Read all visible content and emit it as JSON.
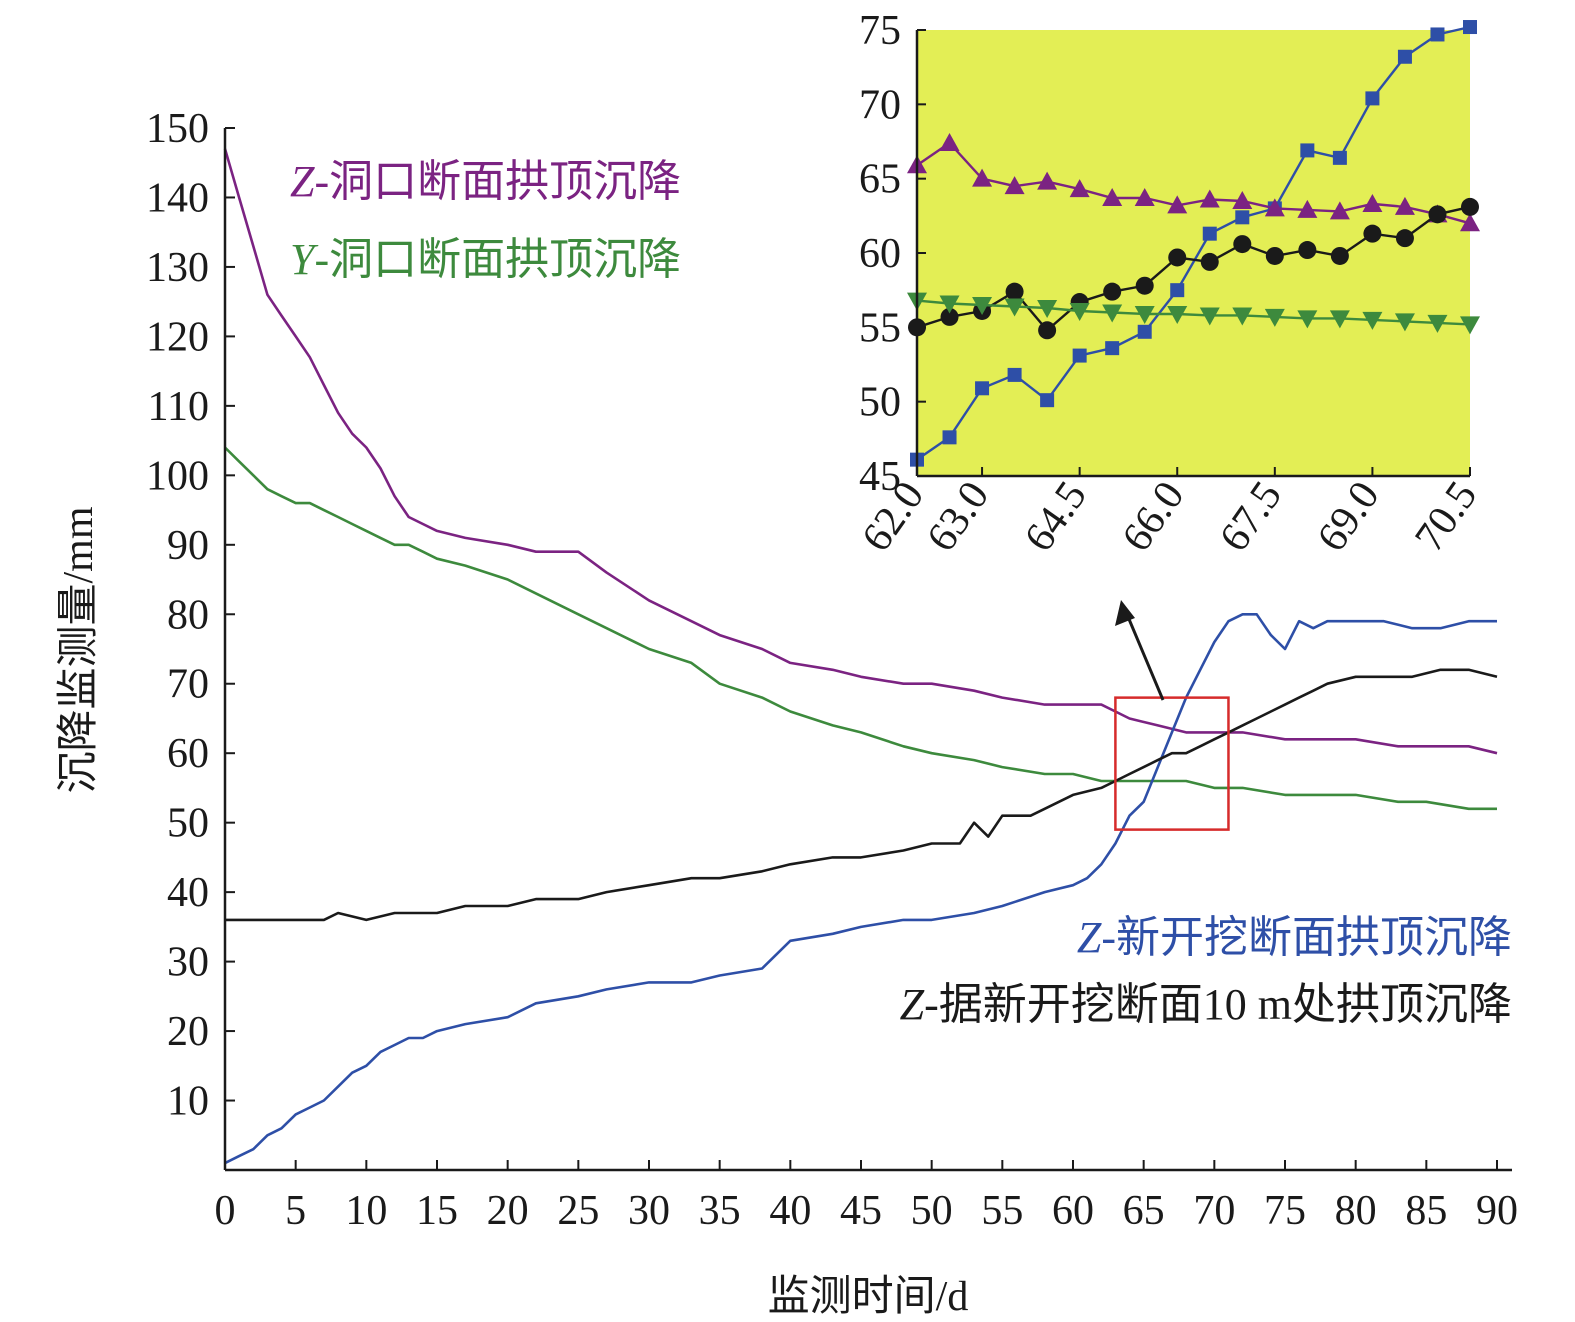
{
  "colors": {
    "z_portal": "#7b2382",
    "y_portal": "#3d8a3d",
    "z_new": "#2e4fa7",
    "z_10m": "#1a1a1a",
    "zoom_box": "#d62b2b",
    "inset_bg": "#e3ee55"
  },
  "chart_data": [
    {
      "type": "line",
      "xlabel": "监测时间/d",
      "ylabel": "沉降监测量/mm",
      "xlim": [
        0,
        90
      ],
      "ylim": [
        0,
        150
      ],
      "xticks": [
        0,
        5,
        10,
        15,
        20,
        25,
        30,
        35,
        40,
        45,
        50,
        55,
        60,
        65,
        70,
        75,
        80,
        85,
        90
      ],
      "yticks": [
        10,
        20,
        30,
        40,
        50,
        60,
        70,
        80,
        90,
        100,
        110,
        120,
        130,
        140,
        150
      ],
      "legend_placement": "top-left and bottom-right",
      "grid": false,
      "annotation": "zoom box from day 63 to day 71, 49 to 68 mm, arrow to inset",
      "series": [
        {
          "name": "Z-洞口断面拱顶沉降",
          "x": [
            0,
            1,
            2,
            3,
            4,
            5,
            6,
            7,
            8,
            9,
            10,
            11,
            12,
            13,
            14,
            15,
            17,
            20,
            22,
            25,
            27,
            30,
            33,
            35,
            38,
            40,
            43,
            45,
            48,
            50,
            53,
            55,
            58,
            60,
            62,
            63,
            64,
            66,
            68,
            70,
            72,
            75,
            78,
            80,
            83,
            85,
            88,
            90
          ],
          "y": [
            147,
            140,
            133,
            126,
            123,
            120,
            117,
            113,
            109,
            106,
            104,
            101,
            97,
            94,
            93,
            92,
            91,
            90,
            89,
            89,
            86,
            82,
            79,
            77,
            75,
            73,
            72,
            71,
            70,
            70,
            69,
            68,
            67,
            67,
            67,
            66,
            65,
            64,
            63,
            63,
            63,
            62,
            62,
            62,
            61,
            61,
            61,
            60
          ]
        },
        {
          "name": "Y-洞口断面拱顶沉降",
          "x": [
            0,
            1,
            2,
            3,
            4,
            5,
            6,
            7,
            8,
            9,
            10,
            11,
            12,
            13,
            14,
            15,
            17,
            20,
            22,
            25,
            27,
            30,
            33,
            35,
            38,
            40,
            43,
            45,
            48,
            50,
            53,
            55,
            58,
            60,
            62,
            64,
            66,
            68,
            70,
            72,
            75,
            78,
            80,
            83,
            85,
            88,
            90
          ],
          "y": [
            104,
            102,
            100,
            98,
            97,
            96,
            96,
            95,
            94,
            93,
            92,
            91,
            90,
            90,
            89,
            88,
            87,
            85,
            83,
            80,
            78,
            75,
            73,
            70,
            68,
            66,
            64,
            63,
            61,
            60,
            59,
            58,
            57,
            57,
            56,
            56,
            56,
            56,
            55,
            55,
            54,
            54,
            54,
            53,
            53,
            52,
            52
          ]
        },
        {
          "name": "Z-新开挖断面拱顶沉降",
          "x": [
            0,
            1,
            2,
            3,
            4,
            5,
            6,
            7,
            8,
            9,
            10,
            11,
            12,
            13,
            14,
            15,
            17,
            20,
            22,
            25,
            27,
            30,
            33,
            35,
            38,
            40,
            43,
            45,
            48,
            50,
            53,
            55,
            58,
            60,
            61,
            62,
            63,
            64,
            65,
            66,
            67,
            68,
            69,
            70,
            71,
            72,
            73,
            74,
            75,
            76,
            77,
            78,
            80,
            82,
            84,
            86,
            88,
            90
          ],
          "y": [
            1,
            2,
            3,
            5,
            6,
            8,
            9,
            10,
            12,
            14,
            15,
            17,
            18,
            19,
            19,
            20,
            21,
            22,
            24,
            25,
            26,
            27,
            27,
            28,
            29,
            33,
            34,
            35,
            36,
            36,
            37,
            38,
            40,
            41,
            42,
            44,
            47,
            51,
            53,
            58,
            63,
            68,
            72,
            76,
            79,
            80,
            80,
            77,
            75,
            79,
            78,
            79,
            79,
            79,
            78,
            78,
            79,
            79
          ]
        },
        {
          "name": "Z-据新开挖断面10 m处拱顶沉降",
          "x": [
            0,
            5,
            7,
            8,
            10,
            12,
            15,
            17,
            20,
            22,
            25,
            27,
            30,
            33,
            35,
            38,
            40,
            43,
            45,
            48,
            50,
            52,
            53,
            54,
            55,
            57,
            58,
            60,
            62,
            63,
            64,
            65,
            66,
            67,
            68,
            69,
            70,
            71,
            72,
            73,
            74,
            75,
            76,
            77,
            78,
            80,
            82,
            84,
            86,
            88,
            90
          ],
          "y": [
            36,
            36,
            36,
            37,
            36,
            37,
            37,
            38,
            38,
            39,
            39,
            40,
            41,
            42,
            42,
            43,
            44,
            45,
            45,
            46,
            47,
            47,
            50,
            48,
            51,
            51,
            52,
            54,
            55,
            56,
            57,
            58,
            59,
            60,
            60,
            61,
            62,
            63,
            64,
            65,
            66,
            67,
            68,
            69,
            70,
            71,
            71,
            71,
            72,
            72,
            71
          ]
        }
      ]
    },
    {
      "type": "line",
      "xlabel": "",
      "ylabel": "",
      "xlim": [
        62,
        70.5
      ],
      "ylim": [
        45,
        75
      ],
      "xticks": [
        "62.0",
        "63.0",
        "64.5",
        "66.0",
        "67.5",
        "69.0",
        "70.5"
      ],
      "yticks": [
        45,
        50,
        55,
        60,
        65,
        70,
        75
      ],
      "background": "#e3ee55",
      "series": [
        {
          "marker": "square",
          "color": "#2e4fa7",
          "x": [
            62.0,
            62.5,
            63.0,
            63.5,
            64.0,
            64.5,
            65.0,
            65.5,
            66.0,
            66.5,
            67.0,
            67.5,
            68.0,
            68.5,
            69.0,
            69.5,
            70.0,
            70.5
          ],
          "y": [
            46.1,
            47.6,
            50.9,
            51.8,
            50.1,
            53.1,
            53.6,
            54.7,
            57.5,
            61.3,
            62.4,
            63.0,
            66.9,
            66.4,
            70.4,
            73.2,
            74.7,
            75.2
          ]
        },
        {
          "marker": "triangle-up",
          "color": "#7b2382",
          "x": [
            62.0,
            62.5,
            63.0,
            63.5,
            64.0,
            64.5,
            65.0,
            65.5,
            66.0,
            66.5,
            67.0,
            67.5,
            68.0,
            68.5,
            69.0,
            69.5,
            70.0,
            70.5
          ],
          "y": [
            65.9,
            67.4,
            65.0,
            64.5,
            64.8,
            64.3,
            63.7,
            63.7,
            63.2,
            63.6,
            63.5,
            63.0,
            62.9,
            62.8,
            63.3,
            63.1,
            62.6,
            62.0
          ]
        },
        {
          "marker": "circle",
          "color": "#1a1a1a",
          "x": [
            62.0,
            62.5,
            63.0,
            63.5,
            64.0,
            64.5,
            65.0,
            65.5,
            66.0,
            66.5,
            67.0,
            67.5,
            68.0,
            68.5,
            69.0,
            69.5,
            70.0,
            70.5
          ],
          "y": [
            55.0,
            55.7,
            56.1,
            57.4,
            54.8,
            56.7,
            57.4,
            57.8,
            59.7,
            59.4,
            60.6,
            59.8,
            60.2,
            59.8,
            61.3,
            61.0,
            62.6,
            63.1
          ]
        },
        {
          "marker": "triangle-down",
          "color": "#3d8a3d",
          "x": [
            62.0,
            62.5,
            63.0,
            63.5,
            64.0,
            64.5,
            65.0,
            65.5,
            66.0,
            66.5,
            67.0,
            67.5,
            68.0,
            68.5,
            69.0,
            69.5,
            70.0,
            70.5
          ],
          "y": [
            56.8,
            56.6,
            56.5,
            56.4,
            56.3,
            56.1,
            56.0,
            55.9,
            55.9,
            55.8,
            55.8,
            55.7,
            55.6,
            55.6,
            55.5,
            55.4,
            55.3,
            55.2
          ]
        }
      ]
    }
  ],
  "legend": [
    {
      "prefix": "Z",
      "text": "-洞口断面拱顶沉降",
      "color": "#7b2382"
    },
    {
      "prefix": "Y",
      "text": "-洞口断面拱顶沉降",
      "color": "#3d8a3d"
    },
    {
      "prefix": "Z",
      "text": "-新开挖断面拱顶沉降",
      "color": "#2e4fa7"
    },
    {
      "prefix": "Z",
      "text": "-据新开挖断面10 m处拱顶沉降",
      "color": "#1a1a1a"
    }
  ]
}
